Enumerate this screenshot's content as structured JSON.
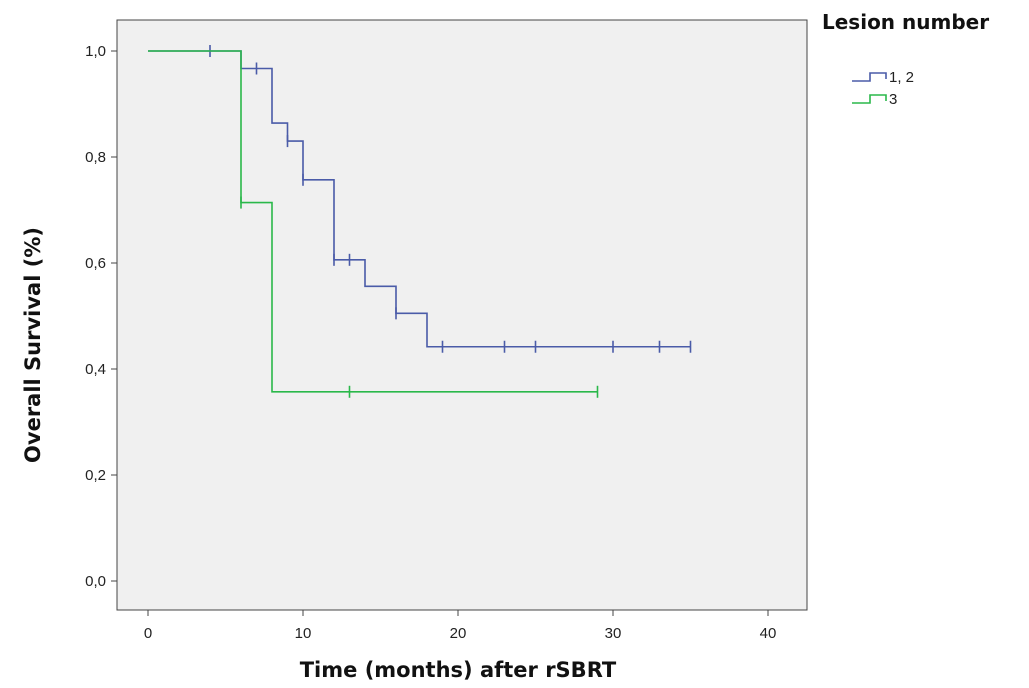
{
  "chart_data": {
    "type": "line",
    "subtype": "kaplan-meier",
    "title": "",
    "xlabel": "Time (months) after rSBRT",
    "ylabel": "Overall Survival (%)",
    "xlim": [
      0,
      40
    ],
    "ylim": [
      0,
      1.0
    ],
    "x_ticks": [
      0,
      10,
      20,
      30,
      40
    ],
    "x_tick_labels": [
      "0",
      "10",
      "20",
      "30",
      "40"
    ],
    "y_ticks": [
      0.0,
      0.2,
      0.4,
      0.6,
      0.8,
      1.0
    ],
    "y_tick_labels": [
      "0,0",
      "0,2",
      "0,4",
      "0,6",
      "0,8",
      "1,0"
    ],
    "grid": false,
    "legend_title": "Lesion number",
    "legend_position": "right",
    "series": [
      {
        "name": "1, 2",
        "color": "#4a5ba8",
        "steps": [
          {
            "x": 0,
            "y": 1.0
          },
          {
            "x": 6,
            "y": 0.967
          },
          {
            "x": 8,
            "y": 0.864
          },
          {
            "x": 9,
            "y": 0.83
          },
          {
            "x": 10,
            "y": 0.757
          },
          {
            "x": 12,
            "y": 0.606
          },
          {
            "x": 14,
            "y": 0.556
          },
          {
            "x": 16,
            "y": 0.505
          },
          {
            "x": 18,
            "y": 0.442
          },
          {
            "x": 35,
            "y": 0.442
          }
        ],
        "censored": [
          {
            "x": 4,
            "y": 1.0
          },
          {
            "x": 7,
            "y": 0.967
          },
          {
            "x": 9,
            "y": 0.83
          },
          {
            "x": 10,
            "y": 0.757
          },
          {
            "x": 12,
            "y": 0.606
          },
          {
            "x": 13,
            "y": 0.606
          },
          {
            "x": 16,
            "y": 0.505
          },
          {
            "x": 19,
            "y": 0.442
          },
          {
            "x": 23,
            "y": 0.442
          },
          {
            "x": 25,
            "y": 0.442
          },
          {
            "x": 30,
            "y": 0.442
          },
          {
            "x": 33,
            "y": 0.442
          },
          {
            "x": 35,
            "y": 0.442
          }
        ]
      },
      {
        "name": "3",
        "color": "#2ab84a",
        "steps": [
          {
            "x": 0,
            "y": 1.0
          },
          {
            "x": 6,
            "y": 0.714
          },
          {
            "x": 8,
            "y": 0.357
          },
          {
            "x": 29,
            "y": 0.357
          }
        ],
        "censored": [
          {
            "x": 6,
            "y": 0.714
          },
          {
            "x": 13,
            "y": 0.357
          },
          {
            "x": 29,
            "y": 0.357
          }
        ]
      }
    ]
  }
}
